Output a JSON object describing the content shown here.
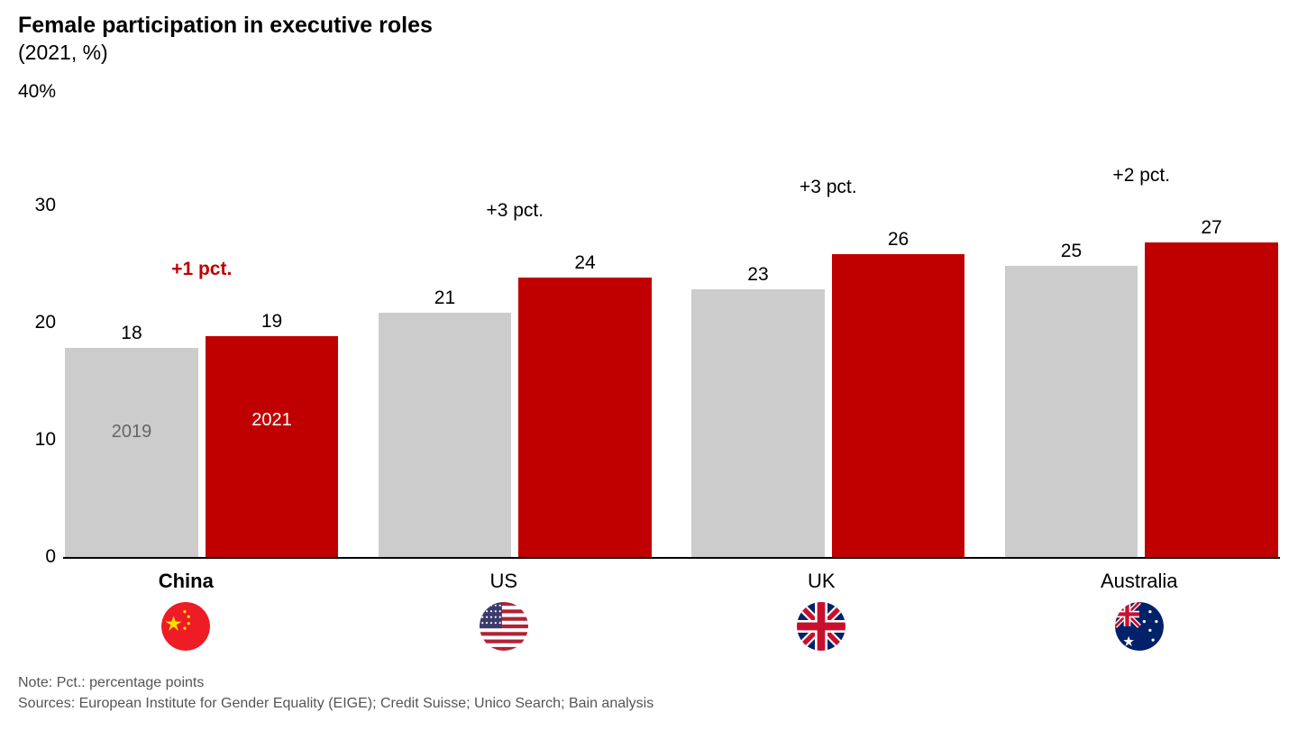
{
  "title": "Female participation in executive roles",
  "subtitle": "(2021, %)",
  "note": "Note: Pct.: percentage points",
  "sources": "Sources: European Institute for Gender Equality (EIGE); Credit Suisse; Unico Search; Bain analysis",
  "chart": {
    "type": "bar",
    "y_max": 40,
    "y_top_label": "40%",
    "y_ticks": [
      {
        "value": 0,
        "label": "0"
      },
      {
        "value": 10,
        "label": "10"
      },
      {
        "value": 20,
        "label": "20"
      },
      {
        "value": 30,
        "label": "30"
      }
    ],
    "baseline_color": "#000000",
    "bar_colors": {
      "year2019": "#cccccc",
      "year2021": "#c00000"
    },
    "inner_label_colors": {
      "year2019": "#666666",
      "year2021": "#ffffff"
    },
    "inner_labels": {
      "year2019": "2019",
      "year2021": "2021"
    },
    "value_label_fontsize": 21,
    "categories": [
      {
        "name": "China",
        "bold": true,
        "flag": "china",
        "values": {
          "year2019": 18,
          "year2021": 19
        },
        "diff_label": "+1 pct.",
        "diff_color": "#c00000",
        "diff_bold": true,
        "show_inner_year_labels": true
      },
      {
        "name": "US",
        "bold": false,
        "flag": "us",
        "values": {
          "year2019": 21,
          "year2021": 24
        },
        "diff_label": "+3 pct.",
        "diff_color": "#000000",
        "diff_bold": false,
        "show_inner_year_labels": false
      },
      {
        "name": "UK",
        "bold": false,
        "flag": "uk",
        "values": {
          "year2019": 23,
          "year2021": 26
        },
        "diff_label": "+3 pct.",
        "diff_color": "#000000",
        "diff_bold": false,
        "show_inner_year_labels": false
      },
      {
        "name": "Australia",
        "bold": false,
        "flag": "australia",
        "values": {
          "year2019": 25,
          "year2021": 27
        },
        "diff_label": "+2 pct.",
        "diff_color": "#000000",
        "diff_bold": false,
        "show_inner_year_labels": false
      }
    ]
  }
}
